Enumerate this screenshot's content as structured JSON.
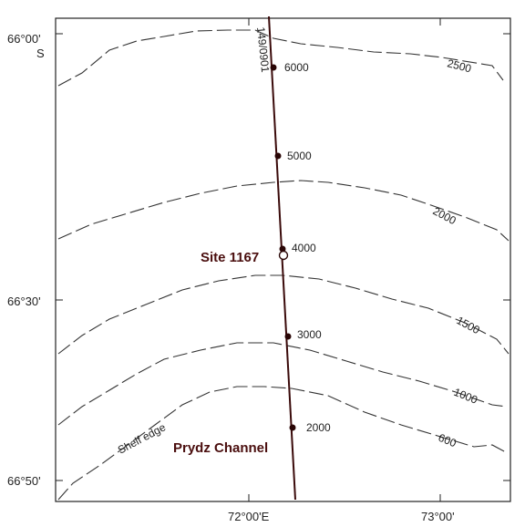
{
  "axes": {
    "lat_labels": [
      {
        "text": "66°00'",
        "lat": 66.0
      },
      {
        "text": "S",
        "lat": 66.0,
        "suffix": true
      },
      {
        "text": "66°30'",
        "lat": 66.5
      },
      {
        "text": "66°50'",
        "lat": 66.8333
      }
    ],
    "lon_labels": [
      {
        "text": "72°00'E",
        "lon": 72.0
      },
      {
        "text": "73°00'",
        "lon": 73.0
      }
    ]
  },
  "contours": [
    {
      "label": "2500",
      "depth_m": 2500
    },
    {
      "label": "2000",
      "depth_m": 2000
    },
    {
      "label": "1500",
      "depth_m": 1500
    },
    {
      "label": "1000",
      "depth_m": 1000
    },
    {
      "label": "600",
      "depth_m": 600
    }
  ],
  "seismic_line": {
    "name": "149/0901",
    "shotpoints": [
      "6000",
      "5000",
      "4000",
      "3000",
      "2000"
    ]
  },
  "site": {
    "name": "Site 1167"
  },
  "features": {
    "shelf_edge": "Shelf edge",
    "channel": "Prydz Channel"
  },
  "colors": {
    "track": "#3a0a0a",
    "site_text": "#4a0e0e",
    "contour": "#333333"
  }
}
